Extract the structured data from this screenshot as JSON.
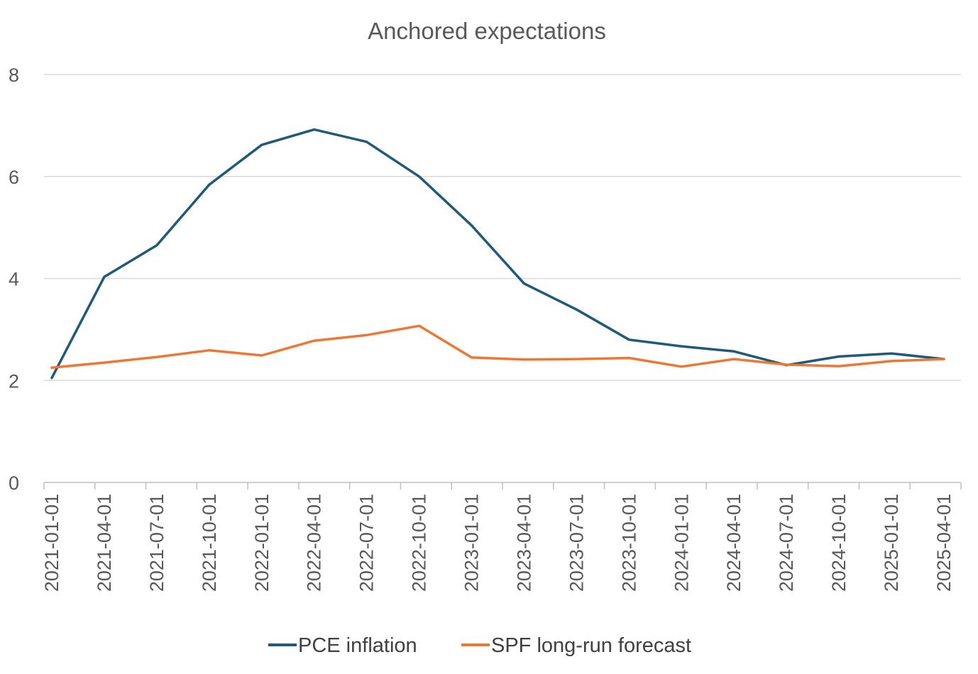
{
  "chart_data": {
    "type": "line",
    "title": "Anchored expectations",
    "xlabel": "",
    "ylabel": "",
    "ylim": [
      0,
      8
    ],
    "yticks": [
      "0",
      "2",
      "4",
      "6",
      "8"
    ],
    "grid": true,
    "legend_position": "bottom",
    "categories": [
      "2021-01-01",
      "2021-04-01",
      "2021-07-01",
      "2021-10-01",
      "2022-01-01",
      "2022-04-01",
      "2022-07-01",
      "2022-10-01",
      "2023-01-01",
      "2023-04-01",
      "2023-07-01",
      "2023-10-01",
      "2024-01-01",
      "2024-04-01",
      "2024-07-01",
      "2024-10-01",
      "2025-01-01",
      "2025-04-01"
    ],
    "series": [
      {
        "name": "PCE inflation",
        "color": "#1f5a7a",
        "values": [
          2.05,
          4.03,
          4.65,
          5.84,
          6.62,
          6.92,
          6.68,
          6.0,
          5.04,
          3.9,
          3.39,
          2.8,
          2.67,
          2.57,
          2.3,
          2.47,
          2.53,
          2.42
        ]
      },
      {
        "name": "SPF long-run forecast",
        "color": "#ee7733",
        "values": [
          2.25,
          2.35,
          2.46,
          2.59,
          2.49,
          2.78,
          2.89,
          3.07,
          2.45,
          2.41,
          2.42,
          2.44,
          2.27,
          2.42,
          2.31,
          2.28,
          2.38,
          2.42
        ]
      }
    ]
  }
}
